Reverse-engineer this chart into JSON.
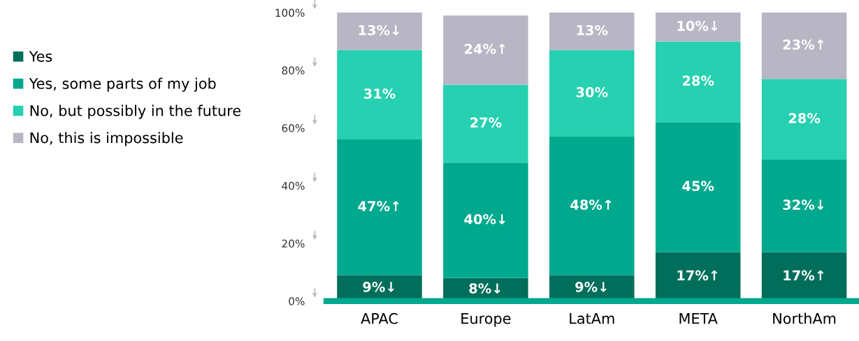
{
  "chart_data": {
    "type": "bar",
    "stacked": true,
    "legend": "left",
    "grid": false,
    "categories": [
      "APAC",
      "Europe",
      "LatAm",
      "META",
      "NorthAm"
    ],
    "ylim": [
      0,
      100
    ],
    "yticks": [
      {
        "value": 0,
        "label": "0%"
      },
      {
        "value": 20,
        "label": "20%"
      },
      {
        "value": 40,
        "label": "40%"
      },
      {
        "value": 60,
        "label": "60%"
      },
      {
        "value": 80,
        "label": "80%"
      },
      {
        "value": 100,
        "label": "100%"
      }
    ],
    "series": [
      {
        "name": "Yes",
        "color": "#006e5a",
        "values": [
          9,
          8,
          9,
          17,
          17
        ],
        "value_labels": [
          "9%↓",
          "8%↓",
          "9%↓",
          "17%↑",
          "17%↑"
        ]
      },
      {
        "name": "Yes, some parts of my job",
        "color": "#00a88e",
        "values": [
          47,
          40,
          48,
          45,
          32
        ],
        "value_labels": [
          "47%↑",
          "40%↓",
          "48%↑",
          "45%",
          "32%↓"
        ]
      },
      {
        "name": "No, but possibly in the future",
        "color": "#26d0b0",
        "values": [
          31,
          27,
          30,
          28,
          28
        ],
        "value_labels": [
          "31%",
          "27%",
          "30%",
          "28%",
          "28%"
        ]
      },
      {
        "name": "No, this is impossible",
        "color": "#b8b6c4",
        "values": [
          13,
          24,
          13,
          10,
          23
        ],
        "value_labels": [
          "13%↓",
          "24%↑",
          "13%",
          "10%↓",
          "23%↑"
        ]
      }
    ]
  }
}
